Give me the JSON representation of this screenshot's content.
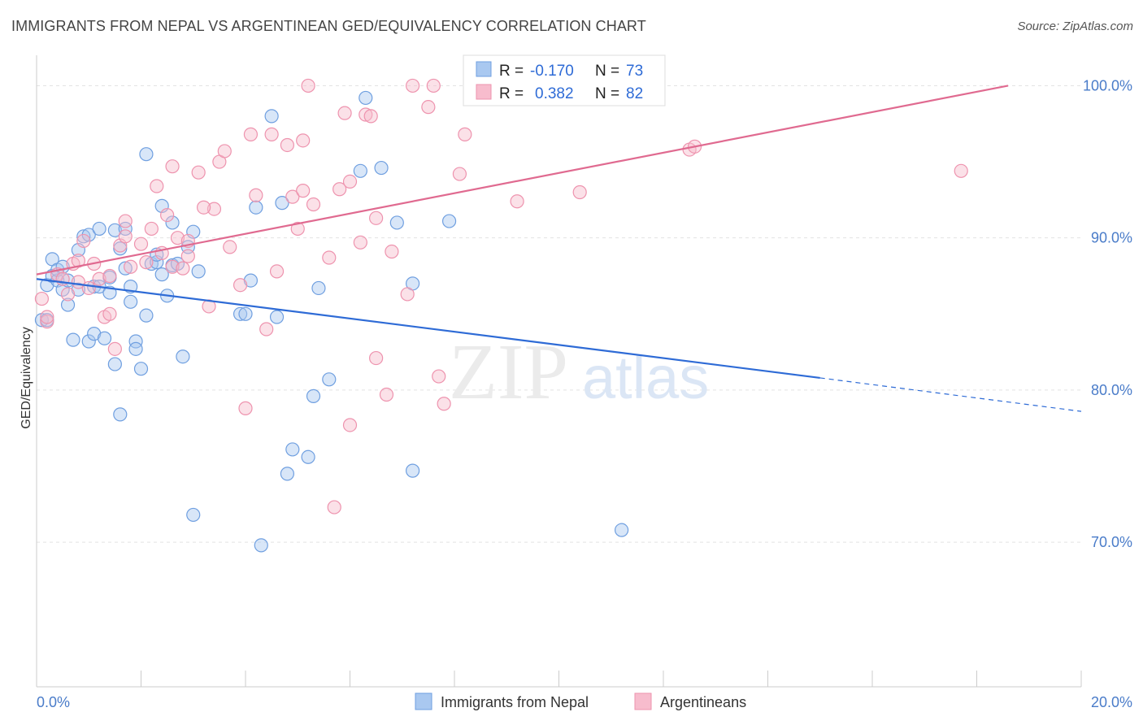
{
  "title": "IMMIGRANTS FROM NEPAL VS ARGENTINEAN GED/EQUIVALENCY CORRELATION CHART",
  "source": "Source: ZipAtlas.com",
  "watermark": {
    "zip": "ZIP",
    "atlas": "atlas"
  },
  "legend": {
    "rows": [
      {
        "r_label": "R =",
        "r_value": "-0.170",
        "n_label": "N =",
        "n_value": "73"
      },
      {
        "r_label": "R =",
        "r_value": "0.382",
        "n_label": "N =",
        "n_value": "82"
      }
    ]
  },
  "bottom_legend": [
    "Immigrants from Nepal",
    "Argentineans"
  ],
  "colors": {
    "nepal_fill": "#a9c8f0",
    "nepal_stroke": "#6f9fe0",
    "nepal_line": "#2e6bd6",
    "arg_fill": "#f7bccd",
    "arg_stroke": "#ee93ae",
    "arg_line": "#e06a90",
    "tick_text": "#4a7cc9",
    "grid": "#e3e3e3"
  },
  "chart_data": {
    "type": "scatter",
    "xlabel": "",
    "ylabel": "GED/Equivalency",
    "xlim": [
      0,
      20
    ],
    "ylim": [
      60.5,
      102
    ],
    "x_tick_labels": [
      {
        "v": 0,
        "t": "0.0%"
      },
      {
        "v": 20,
        "t": "20.0%"
      }
    ],
    "y_tick_labels": [
      {
        "v": 100,
        "t": "100.0%"
      },
      {
        "v": 90,
        "t": "90.0%"
      },
      {
        "v": 80,
        "t": "80.0%"
      },
      {
        "v": 70,
        "t": "70.0%"
      }
    ],
    "grid": true,
    "series": [
      {
        "name": "Immigrants from Nepal",
        "trend": {
          "x0": 0,
          "y0": 87.3,
          "x1": 15.0,
          "y1": 80.8,
          "dash_to_x": 20,
          "dash_to_y": 78.6
        },
        "points": [
          [
            0.1,
            84.6
          ],
          [
            0.2,
            86.9
          ],
          [
            0.2,
            84.6
          ],
          [
            0.3,
            87.5
          ],
          [
            0.3,
            88.6
          ],
          [
            0.4,
            87.2
          ],
          [
            0.4,
            87.9
          ],
          [
            0.5,
            86.6
          ],
          [
            0.5,
            88.1
          ],
          [
            0.6,
            87.2
          ],
          [
            0.6,
            85.6
          ],
          [
            0.7,
            83.3
          ],
          [
            0.8,
            86.6
          ],
          [
            0.8,
            89.2
          ],
          [
            0.9,
            90.1
          ],
          [
            1.0,
            90.2
          ],
          [
            1.0,
            83.2
          ],
          [
            1.1,
            86.8
          ],
          [
            1.1,
            83.7
          ],
          [
            1.2,
            86.8
          ],
          [
            1.2,
            90.6
          ],
          [
            1.3,
            83.4
          ],
          [
            1.4,
            86.4
          ],
          [
            1.4,
            87.4
          ],
          [
            1.5,
            81.7
          ],
          [
            1.5,
            90.5
          ],
          [
            1.6,
            78.4
          ],
          [
            1.6,
            89.3
          ],
          [
            1.7,
            90.6
          ],
          [
            1.7,
            88.0
          ],
          [
            1.8,
            86.8
          ],
          [
            1.8,
            85.8
          ],
          [
            1.9,
            83.2
          ],
          [
            1.9,
            82.7
          ],
          [
            2.0,
            81.4
          ],
          [
            2.1,
            84.9
          ],
          [
            2.1,
            95.5
          ],
          [
            2.2,
            88.3
          ],
          [
            2.3,
            88.4
          ],
          [
            2.3,
            88.9
          ],
          [
            2.4,
            92.1
          ],
          [
            2.4,
            87.6
          ],
          [
            2.5,
            86.2
          ],
          [
            2.6,
            91.0
          ],
          [
            2.6,
            88.2
          ],
          [
            2.7,
            88.3
          ],
          [
            2.8,
            82.2
          ],
          [
            2.9,
            89.4
          ],
          [
            3.0,
            90.4
          ],
          [
            3.0,
            71.8
          ],
          [
            3.1,
            87.8
          ],
          [
            3.9,
            85.0
          ],
          [
            4.0,
            85.0
          ],
          [
            4.1,
            87.2
          ],
          [
            4.2,
            92.0
          ],
          [
            4.3,
            69.8
          ],
          [
            4.5,
            98.0
          ],
          [
            4.6,
            84.8
          ],
          [
            4.7,
            92.3
          ],
          [
            4.8,
            74.5
          ],
          [
            4.9,
            76.1
          ],
          [
            5.2,
            75.6
          ],
          [
            5.3,
            79.6
          ],
          [
            5.4,
            86.7
          ],
          [
            5.6,
            80.7
          ],
          [
            6.2,
            94.4
          ],
          [
            6.3,
            99.2
          ],
          [
            6.6,
            94.6
          ],
          [
            6.9,
            91.0
          ],
          [
            7.2,
            87.0
          ],
          [
            7.2,
            74.7
          ],
          [
            7.9,
            91.1
          ],
          [
            11.2,
            70.8
          ]
        ]
      },
      {
        "name": "Argentineans",
        "trend": {
          "x0": 0,
          "y0": 87.6,
          "x1": 18.6,
          "y1": 100.0
        },
        "points": [
          [
            0.1,
            86.0
          ],
          [
            0.2,
            84.5
          ],
          [
            0.2,
            84.8
          ],
          [
            0.4,
            87.6
          ],
          [
            0.5,
            87.3
          ],
          [
            0.6,
            86.3
          ],
          [
            0.7,
            88.3
          ],
          [
            0.8,
            87.1
          ],
          [
            0.9,
            89.8
          ],
          [
            1.1,
            88.3
          ],
          [
            1.2,
            87.3
          ],
          [
            1.3,
            84.8
          ],
          [
            1.4,
            87.5
          ],
          [
            1.5,
            82.7
          ],
          [
            1.6,
            89.5
          ],
          [
            1.7,
            90.1
          ],
          [
            1.7,
            91.1
          ],
          [
            1.8,
            88.1
          ],
          [
            2.0,
            89.6
          ],
          [
            2.1,
            88.4
          ],
          [
            2.2,
            90.6
          ],
          [
            2.3,
            93.4
          ],
          [
            2.4,
            89.0
          ],
          [
            2.5,
            91.5
          ],
          [
            2.6,
            88.1
          ],
          [
            2.7,
            90.0
          ],
          [
            2.8,
            88.0
          ],
          [
            2.9,
            88.8
          ],
          [
            2.9,
            89.8
          ],
          [
            3.1,
            94.3
          ],
          [
            3.3,
            85.5
          ],
          [
            3.4,
            91.9
          ],
          [
            3.5,
            95.0
          ],
          [
            3.6,
            95.7
          ],
          [
            3.7,
            89.4
          ],
          [
            3.9,
            86.9
          ],
          [
            4.0,
            78.8
          ],
          [
            4.2,
            92.8
          ],
          [
            4.4,
            84.0
          ],
          [
            4.5,
            96.8
          ],
          [
            4.6,
            87.8
          ],
          [
            4.8,
            96.1
          ],
          [
            4.9,
            92.7
          ],
          [
            5.0,
            90.6
          ],
          [
            5.1,
            96.4
          ],
          [
            5.1,
            93.1
          ],
          [
            5.2,
            100.0
          ],
          [
            5.6,
            88.7
          ],
          [
            5.7,
            72.3
          ],
          [
            5.8,
            93.2
          ],
          [
            5.9,
            98.2
          ],
          [
            6.0,
            93.7
          ],
          [
            6.0,
            77.7
          ],
          [
            6.2,
            89.7
          ],
          [
            6.3,
            98.1
          ],
          [
            6.4,
            98.0
          ],
          [
            6.5,
            82.1
          ],
          [
            6.5,
            91.3
          ],
          [
            6.7,
            79.7
          ],
          [
            6.8,
            89.1
          ],
          [
            7.2,
            100.0
          ],
          [
            7.1,
            86.3
          ],
          [
            7.5,
            98.6
          ],
          [
            7.6,
            100.0
          ],
          [
            7.7,
            80.9
          ],
          [
            7.8,
            79.1
          ],
          [
            8.1,
            94.2
          ],
          [
            8.2,
            96.8
          ],
          [
            8.8,
            100.0
          ],
          [
            9.4,
            100.0
          ],
          [
            9.2,
            92.4
          ],
          [
            10.4,
            93.0
          ],
          [
            12.5,
            95.8
          ],
          [
            12.6,
            96.0
          ],
          [
            17.7,
            94.4
          ],
          [
            5.3,
            92.2
          ],
          [
            4.1,
            96.8
          ],
          [
            3.2,
            92.0
          ],
          [
            2.6,
            94.7
          ],
          [
            1.0,
            86.7
          ],
          [
            0.8,
            88.5
          ],
          [
            1.4,
            85.0
          ]
        ]
      }
    ]
  }
}
